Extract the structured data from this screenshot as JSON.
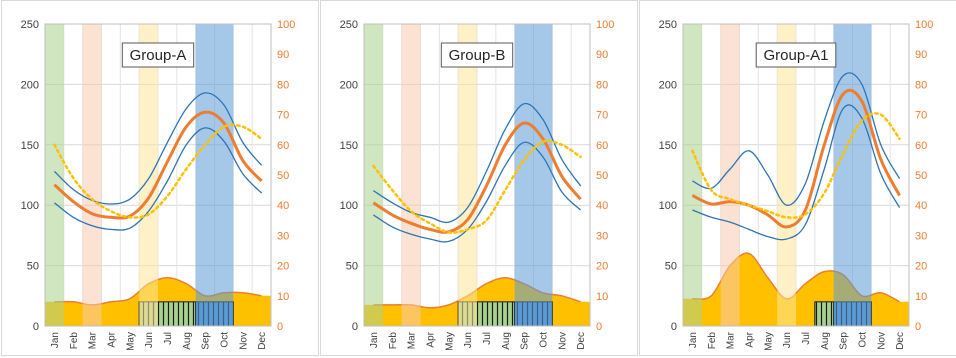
{
  "colors": {
    "jan_band": "#A9D18E",
    "mar_band": "#F8CBAD",
    "jun_band": "#FFE699",
    "sep_band": "#5B9BD5",
    "thin_lines": "#2E75B6",
    "thick_line": "#ED7D31",
    "dotted_line": "#FFC000",
    "area_fill": "#FFC000",
    "area_edge": "#ED7D31",
    "green_hatch": "#A9D18E",
    "blue_hatch": "#5B9BD5",
    "right_axis_text": "#ED7D31"
  },
  "chart_data": [
    {
      "type": "line",
      "title": "Group-A",
      "categories": [
        "Jan",
        "Feb",
        "Mar",
        "Apr",
        "May",
        "Jun",
        "Jul",
        "Aug",
        "Sep",
        "Oct",
        "Nov",
        "Dec"
      ],
      "ylim": [
        0,
        250
      ],
      "y_ticks": [
        0,
        50,
        100,
        150,
        200,
        250
      ],
      "y2lim": [
        0,
        100
      ],
      "y2_ticks": [
        0,
        10,
        20,
        30,
        40,
        50,
        60,
        70,
        80,
        90,
        100
      ],
      "bands": [
        {
          "color": "jan_band",
          "from": 0,
          "to": 1
        },
        {
          "color": "mar_band",
          "from": 2,
          "to": 3
        },
        {
          "color": "jun_band",
          "from": 5,
          "to": 6
        },
        {
          "color": "sep_band",
          "from": 8,
          "to": 10
        }
      ],
      "series": [
        {
          "style": "thin",
          "axis": "left",
          "values": [
            128,
            113,
            104,
            101,
            105,
            122,
            152,
            180,
            193,
            183,
            152,
            133
          ]
        },
        {
          "style": "thin",
          "axis": "left",
          "values": [
            102,
            90,
            83,
            80,
            81,
            95,
            120,
            150,
            164,
            153,
            126,
            110
          ]
        },
        {
          "style": "thick",
          "axis": "left",
          "values": [
            117,
            103,
            93,
            90,
            91,
            106,
            136,
            165,
            177,
            168,
            137,
            120
          ]
        },
        {
          "style": "dotted",
          "axis": "right",
          "values": [
            60,
            49,
            42,
            38,
            36,
            37,
            43,
            52,
            60,
            66,
            66,
            62
          ]
        },
        {
          "style": "area",
          "axis": "right",
          "values": [
            8,
            8,
            7,
            8,
            9,
            14,
            16,
            14,
            10,
            11,
            11,
            10
          ]
        }
      ],
      "boxes": [
        {
          "pattern": "green",
          "from": 5,
          "to": 8,
          "value": 8
        },
        {
          "pattern": "blue",
          "from": 8,
          "to": 10,
          "value": 8
        }
      ]
    },
    {
      "type": "line",
      "title": "Group-B",
      "categories": [
        "Jan",
        "Feb",
        "Mar",
        "Apr",
        "May",
        "Jun",
        "Jul",
        "Aug",
        "Sep",
        "Oct",
        "Nov",
        "Dec"
      ],
      "ylim": [
        0,
        250
      ],
      "y_ticks": [
        0,
        50,
        100,
        150,
        200,
        250
      ],
      "y2lim": [
        0,
        100
      ],
      "y2_ticks": [
        0,
        10,
        20,
        30,
        40,
        50,
        60,
        70,
        80,
        90,
        100
      ],
      "bands": [
        {
          "color": "jan_band",
          "from": 0,
          "to": 1
        },
        {
          "color": "mar_band",
          "from": 2,
          "to": 3
        },
        {
          "color": "jun_band",
          "from": 5,
          "to": 6
        },
        {
          "color": "sep_band",
          "from": 8,
          "to": 10
        }
      ],
      "series": [
        {
          "style": "thin",
          "axis": "left",
          "values": [
            112,
            102,
            94,
            90,
            86,
            98,
            128,
            163,
            184,
            171,
            138,
            116
          ]
        },
        {
          "style": "thin",
          "axis": "left",
          "values": [
            92,
            82,
            76,
            72,
            70,
            80,
            103,
            133,
            152,
            140,
            111,
            96
          ]
        },
        {
          "style": "thick",
          "axis": "left",
          "values": [
            102,
            92,
            85,
            80,
            78,
            88,
            116,
            150,
            168,
            155,
            124,
            105
          ]
        },
        {
          "style": "dotted",
          "axis": "right",
          "values": [
            53,
            45,
            38,
            34,
            31,
            32,
            35,
            45,
            55,
            61,
            60,
            56
          ]
        },
        {
          "style": "area",
          "axis": "right",
          "values": [
            7,
            7,
            7,
            6,
            7,
            10,
            14,
            16,
            14,
            11,
            10,
            8
          ]
        }
      ],
      "boxes": [
        {
          "pattern": "green",
          "from": 5,
          "to": 8,
          "value": 8
        },
        {
          "pattern": "blue",
          "from": 8,
          "to": 10,
          "value": 8
        }
      ]
    },
    {
      "type": "line",
      "title": "Group-A1",
      "categories": [
        "Jan",
        "Feb",
        "Mar",
        "Apr",
        "May",
        "Jun",
        "Jul",
        "Aug",
        "Sep",
        "Oct",
        "Nov",
        "Dec"
      ],
      "ylim": [
        0,
        250
      ],
      "y_ticks": [
        0,
        50,
        100,
        150,
        200,
        250
      ],
      "y2lim": [
        0,
        100
      ],
      "y2_ticks": [
        0,
        10,
        20,
        30,
        40,
        50,
        60,
        70,
        80,
        90,
        100
      ],
      "bands": [
        {
          "color": "jan_band",
          "from": 0,
          "to": 1
        },
        {
          "color": "mar_band",
          "from": 2,
          "to": 3
        },
        {
          "color": "jun_band",
          "from": 5,
          "to": 6
        },
        {
          "color": "sep_band",
          "from": 8,
          "to": 10
        }
      ],
      "series": [
        {
          "style": "thin",
          "axis": "left",
          "values": [
            120,
            114,
            130,
            145,
            125,
            100,
            118,
            170,
            207,
            200,
            150,
            122
          ]
        },
        {
          "style": "thin",
          "axis": "left",
          "values": [
            96,
            90,
            86,
            80,
            74,
            72,
            84,
            130,
            180,
            172,
            126,
            98
          ]
        },
        {
          "style": "thick",
          "axis": "left",
          "values": [
            108,
            101,
            103,
            100,
            92,
            82,
            96,
            150,
            192,
            186,
            138,
            108
          ]
        },
        {
          "style": "dotted",
          "axis": "right",
          "values": [
            58,
            45,
            42,
            40,
            38,
            36,
            37,
            44,
            57,
            68,
            70,
            62
          ]
        },
        {
          "style": "area",
          "axis": "right",
          "values": [
            9,
            10,
            20,
            24,
            16,
            9,
            14,
            18,
            17,
            10,
            11,
            8
          ]
        }
      ],
      "boxes": [
        {
          "pattern": "green",
          "from": 7,
          "to": 8,
          "value": 8
        },
        {
          "pattern": "blue",
          "from": 8,
          "to": 10,
          "value": 8
        }
      ]
    }
  ]
}
